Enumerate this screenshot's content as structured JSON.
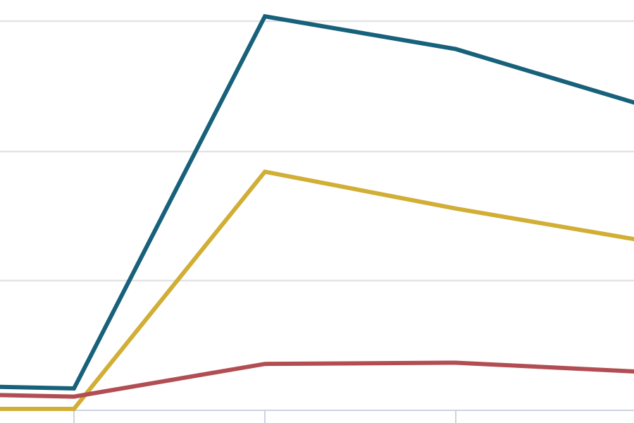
{
  "chart_data": {
    "type": "line",
    "x": [
      0,
      1,
      2,
      3,
      4
    ],
    "grid": "horizontal",
    "legend": "none",
    "ylim": [
      0,
      100
    ],
    "series": [
      {
        "values": [
          6,
          5,
          96,
          88,
          74
        ],
        "color": "#17617a"
      },
      {
        "values": [
          0,
          0,
          58,
          49,
          41
        ],
        "color": "#d1ae35"
      },
      {
        "values": [
          4,
          3,
          11,
          11.3,
          9
        ],
        "color": "#b24e53"
      }
    ]
  }
}
